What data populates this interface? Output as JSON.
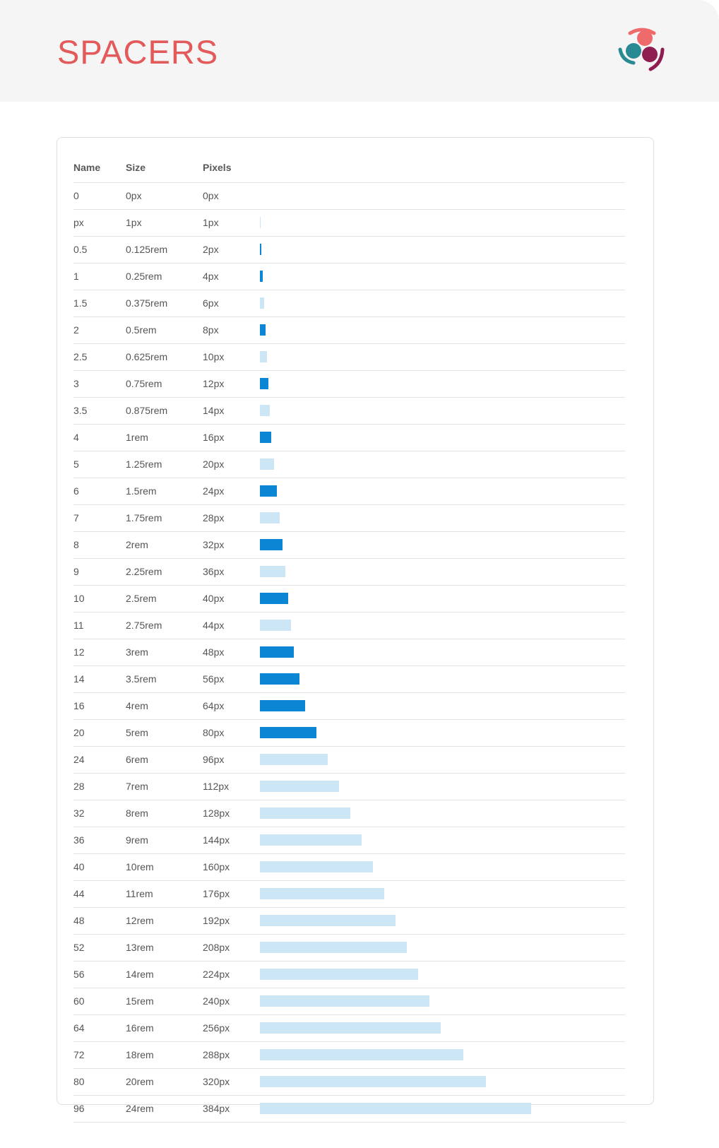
{
  "header": {
    "title": "SPACERS",
    "logo": "people-circle-logo"
  },
  "colors": {
    "title": "#e25a5a",
    "bar_strong": "#0b86d4",
    "bar_light": "#cde6f6",
    "logo_coral": "#ef6b6b",
    "logo_teal": "#2a8a93",
    "logo_maroon": "#8f1d4f"
  },
  "table": {
    "columns": [
      "Name",
      "Size",
      "Pixels"
    ],
    "rows": [
      {
        "name": "0",
        "size": "0px",
        "pixels": "0px",
        "value": 0,
        "strong": false
      },
      {
        "name": "px",
        "size": "1px",
        "pixels": "1px",
        "value": 1,
        "strong": false
      },
      {
        "name": "0.5",
        "size": "0.125rem",
        "pixels": "2px",
        "value": 2,
        "strong": true
      },
      {
        "name": "1",
        "size": "0.25rem",
        "pixels": "4px",
        "value": 4,
        "strong": true
      },
      {
        "name": "1.5",
        "size": "0.375rem",
        "pixels": "6px",
        "value": 6,
        "strong": false
      },
      {
        "name": "2",
        "size": "0.5rem",
        "pixels": "8px",
        "value": 8,
        "strong": true
      },
      {
        "name": "2.5",
        "size": "0.625rem",
        "pixels": "10px",
        "value": 10,
        "strong": false
      },
      {
        "name": "3",
        "size": "0.75rem",
        "pixels": "12px",
        "value": 12,
        "strong": true
      },
      {
        "name": "3.5",
        "size": "0.875rem",
        "pixels": "14px",
        "value": 14,
        "strong": false
      },
      {
        "name": "4",
        "size": "1rem",
        "pixels": "16px",
        "value": 16,
        "strong": true
      },
      {
        "name": "5",
        "size": "1.25rem",
        "pixels": "20px",
        "value": 20,
        "strong": false
      },
      {
        "name": "6",
        "size": "1.5rem",
        "pixels": "24px",
        "value": 24,
        "strong": true
      },
      {
        "name": "7",
        "size": "1.75rem",
        "pixels": "28px",
        "value": 28,
        "strong": false
      },
      {
        "name": "8",
        "size": "2rem",
        "pixels": "32px",
        "value": 32,
        "strong": true
      },
      {
        "name": "9",
        "size": "2.25rem",
        "pixels": "36px",
        "value": 36,
        "strong": false
      },
      {
        "name": "10",
        "size": "2.5rem",
        "pixels": "40px",
        "value": 40,
        "strong": true
      },
      {
        "name": "11",
        "size": "2.75rem",
        "pixels": "44px",
        "value": 44,
        "strong": false
      },
      {
        "name": "12",
        "size": "3rem",
        "pixels": "48px",
        "value": 48,
        "strong": true
      },
      {
        "name": "14",
        "size": "3.5rem",
        "pixels": "56px",
        "value": 56,
        "strong": true
      },
      {
        "name": "16",
        "size": "4rem",
        "pixels": "64px",
        "value": 64,
        "strong": true
      },
      {
        "name": "20",
        "size": "5rem",
        "pixels": "80px",
        "value": 80,
        "strong": true
      },
      {
        "name": "24",
        "size": "6rem",
        "pixels": "96px",
        "value": 96,
        "strong": false
      },
      {
        "name": "28",
        "size": "7rem",
        "pixels": "112px",
        "value": 112,
        "strong": false
      },
      {
        "name": "32",
        "size": "8rem",
        "pixels": "128px",
        "value": 128,
        "strong": false
      },
      {
        "name": "36",
        "size": "9rem",
        "pixels": "144px",
        "value": 144,
        "strong": false
      },
      {
        "name": "40",
        "size": "10rem",
        "pixels": "160px",
        "value": 160,
        "strong": false
      },
      {
        "name": "44",
        "size": "11rem",
        "pixels": "176px",
        "value": 176,
        "strong": false
      },
      {
        "name": "48",
        "size": "12rem",
        "pixels": "192px",
        "value": 192,
        "strong": false
      },
      {
        "name": "52",
        "size": "13rem",
        "pixels": "208px",
        "value": 208,
        "strong": false
      },
      {
        "name": "56",
        "size": "14rem",
        "pixels": "224px",
        "value": 224,
        "strong": false
      },
      {
        "name": "60",
        "size": "15rem",
        "pixels": "240px",
        "value": 240,
        "strong": false
      },
      {
        "name": "64",
        "size": "16rem",
        "pixels": "256px",
        "value": 256,
        "strong": false
      },
      {
        "name": "72",
        "size": "18rem",
        "pixels": "288px",
        "value": 288,
        "strong": false
      },
      {
        "name": "80",
        "size": "20rem",
        "pixels": "320px",
        "value": 320,
        "strong": false
      },
      {
        "name": "96",
        "size": "24rem",
        "pixels": "384px",
        "value": 384,
        "strong": false
      }
    ]
  }
}
